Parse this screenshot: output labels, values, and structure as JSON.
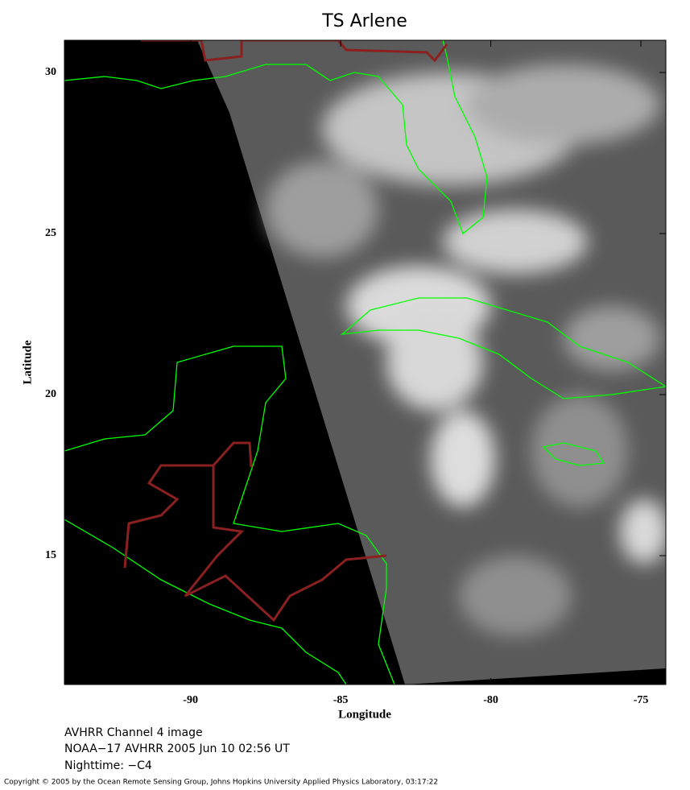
{
  "title": "TS Arlene",
  "x_axis": {
    "label": "Longitude",
    "lim": [
      -94.2,
      -74.17
    ],
    "ticks": [
      -90,
      -85,
      -80,
      -75
    ]
  },
  "y_axis": {
    "label": "Latitude",
    "lim": [
      11,
      31
    ],
    "ticks": [
      15,
      20,
      25,
      30
    ]
  },
  "captions": [
    "AVHRR Channel 4 image",
    "NOAA−17 AVHRR 2005 Jun 10 02:56 UT",
    "Nighttime: −C4"
  ],
  "copyright": "Copyright © 2005 by the Ocean Remote Sensing Group, Johns Hopkins University Applied Physics Laboratory, 03:17:22"
}
